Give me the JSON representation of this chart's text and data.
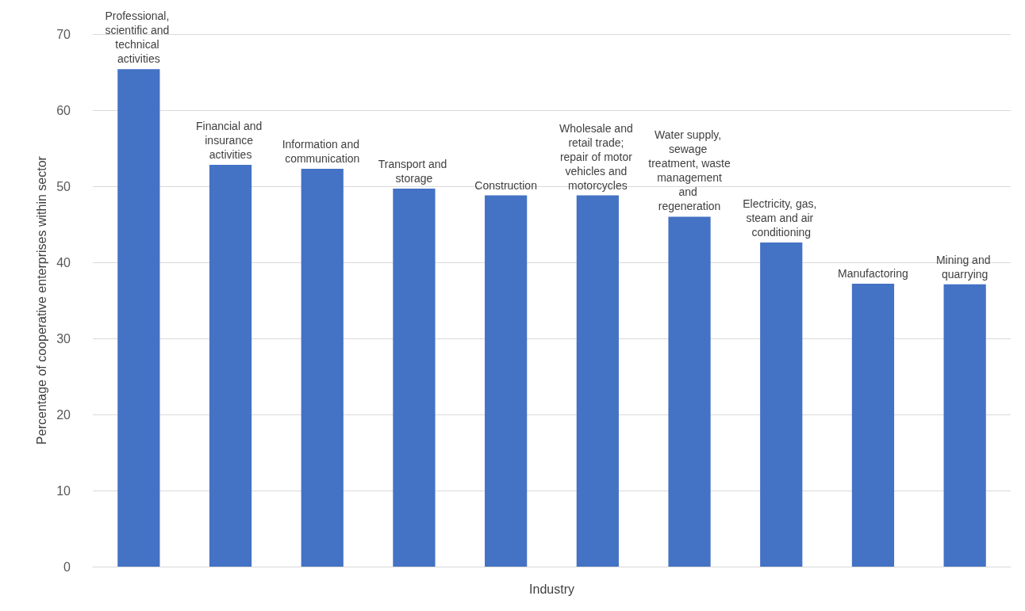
{
  "chart_data": {
    "type": "bar",
    "xlabel": "Industry",
    "ylabel": "Percentage of cooperative enterprises within sector",
    "categories": [
      "Professional, scientific and technical activities",
      "Financial and insurance activities",
      "Information and communication",
      "Transport and storage",
      "Construction",
      "Wholesale and retail trade; repair of motor vehicles and motorcycles",
      "Water supply, sewage treatment, waste management and regeneration",
      "Electricity, gas, steam and air conditioning",
      "Manufactoring",
      "Mining and quarrying"
    ],
    "values": [
      65.4,
      52.8,
      52.3,
      49.7,
      48.8,
      48.8,
      46.0,
      42.6,
      37.2,
      37.1
    ],
    "color": "#4472c4",
    "ylim": [
      0,
      70
    ],
    "yticks": [
      0,
      10,
      20,
      30,
      40,
      50,
      60,
      70
    ],
    "grid": "y",
    "tick_labels": "y"
  }
}
